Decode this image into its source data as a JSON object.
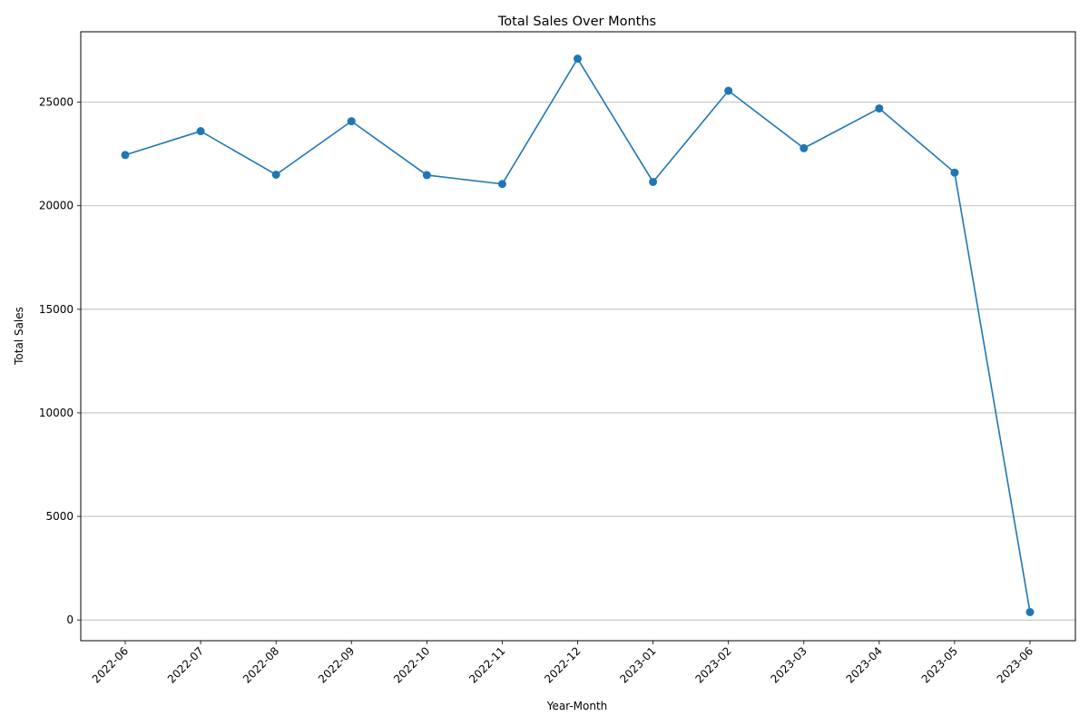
{
  "chart_data": {
    "type": "line",
    "title": "Total Sales Over Months",
    "xlabel": "Year-Month",
    "ylabel": "Total Sales",
    "categories": [
      "2022-06",
      "2022-07",
      "2022-08",
      "2022-09",
      "2022-10",
      "2022-11",
      "2022-12",
      "2023-01",
      "2023-02",
      "2023-03",
      "2023-04",
      "2023-05",
      "2023-06"
    ],
    "series": [
      {
        "values": [
          22450,
          23600,
          21500,
          24080,
          21480,
          21050,
          27100,
          21150,
          25550,
          22780,
          24700,
          21600,
          380
        ],
        "color": "#1f77b4",
        "marker": "circle"
      }
    ],
    "yticks": [
      0,
      5000,
      10000,
      15000,
      20000,
      25000
    ],
    "ylim": [
      -1000,
      28400
    ],
    "grid": "horizontal",
    "legend": "none",
    "xtick_rotation": 45
  }
}
